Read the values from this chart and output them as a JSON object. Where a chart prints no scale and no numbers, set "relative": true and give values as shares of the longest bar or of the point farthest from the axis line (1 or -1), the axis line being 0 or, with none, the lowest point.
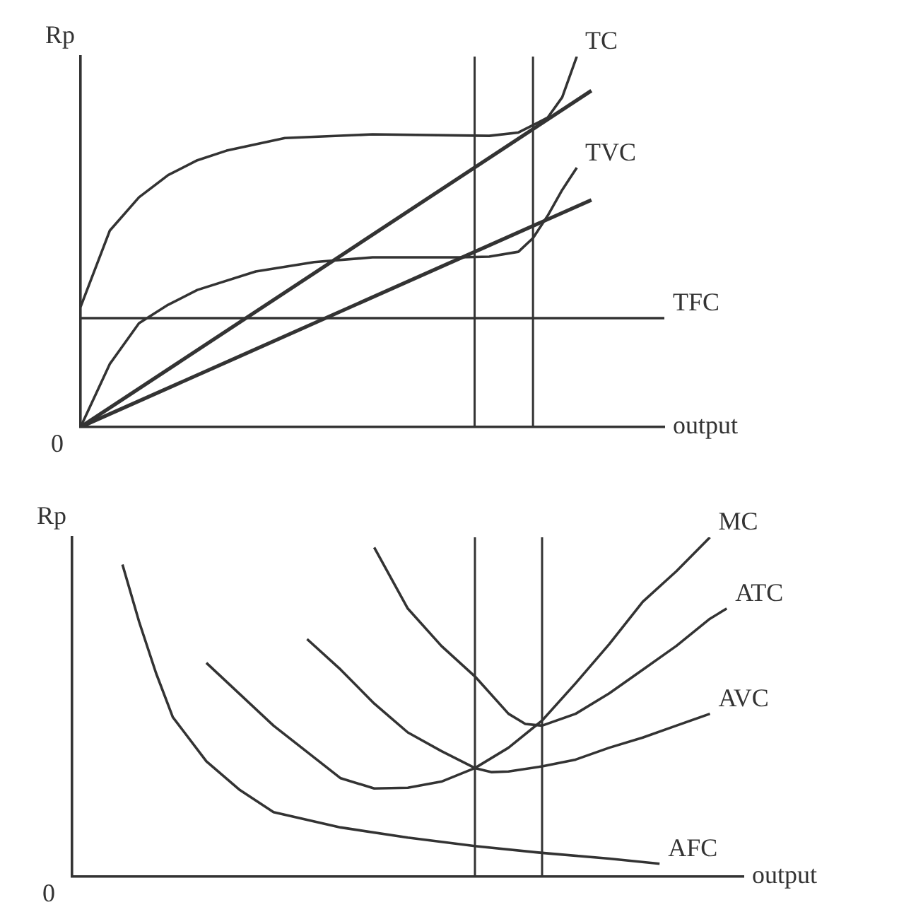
{
  "chart_data": [
    {
      "type": "line",
      "relative": true,
      "ylabel": "Rp",
      "xlabel": "output",
      "annotations": [
        "0"
      ],
      "tick_labels": false,
      "categories": [
        null,
        null,
        null,
        null,
        null,
        null,
        null,
        null,
        null,
        null,
        null,
        null,
        null,
        null,
        null,
        null,
        null,
        null,
        null,
        null,
        null,
        null,
        null,
        null,
        null,
        null,
        null,
        null,
        null,
        null,
        null,
        null,
        null,
        null,
        null,
        null,
        null,
        null,
        null,
        null,
        null
      ],
      "series": [
        {
          "name": "TC",
          "color": "#333333",
          "values": [
            0.324,
            null,
            0.53,
            null,
            0.62,
            null,
            0.68,
            null,
            0.72,
            null,
            0.746,
            null,
            null,
            null,
            0.78,
            null,
            null,
            null,
            null,
            null,
            0.79,
            null,
            null,
            null,
            null,
            null,
            null,
            null,
            0.786,
            null,
            0.795,
            null,
            0.835,
            0.89,
            1,
            null,
            null,
            null,
            null,
            null,
            null
          ]
        },
        {
          "name": "TVC",
          "color": "#333333",
          "values": [
            0,
            null,
            0.17,
            null,
            0.28,
            null,
            0.33,
            null,
            0.37,
            null,
            null,
            null,
            0.42,
            null,
            null,
            null,
            0.445,
            null,
            null,
            null,
            0.458,
            null,
            null,
            null,
            null,
            null,
            0.458,
            null,
            0.46,
            null,
            0.473,
            0.51,
            0.57,
            0.64,
            0.7,
            null,
            null,
            null,
            null,
            null,
            null
          ]
        },
        {
          "name": "TFC",
          "color": "#333333",
          "values": [
            0.294,
            null,
            null,
            null,
            null,
            null,
            null,
            null,
            null,
            null,
            null,
            null,
            null,
            null,
            null,
            null,
            null,
            null,
            null,
            null,
            null,
            null,
            null,
            null,
            null,
            null,
            null,
            null,
            null,
            null,
            null,
            null,
            null,
            null,
            null,
            null,
            null,
            null,
            null,
            null,
            0.294
          ]
        },
        {
          "color": "#333333",
          "values": [
            0,
            null,
            null,
            null,
            null,
            null,
            null,
            null,
            null,
            null,
            null,
            null,
            null,
            null,
            null,
            null,
            null,
            null,
            null,
            null,
            null,
            null,
            null,
            null,
            null,
            null,
            null,
            null,
            null,
            null,
            null,
            null,
            null,
            null,
            null,
            0.908,
            null,
            null,
            null,
            null,
            null
          ]
        },
        {
          "color": "#333333",
          "values": [
            0,
            null,
            null,
            null,
            null,
            null,
            null,
            null,
            null,
            null,
            null,
            null,
            null,
            null,
            null,
            null,
            null,
            null,
            null,
            null,
            null,
            null,
            null,
            null,
            null,
            null,
            null,
            null,
            null,
            null,
            null,
            null,
            null,
            null,
            null,
            0.613,
            null,
            null,
            null,
            null,
            null
          ]
        }
      ]
    },
    {
      "type": "line",
      "relative": true,
      "ylabel": "Rp",
      "xlabel": "output",
      "annotations": [
        "0"
      ],
      "tick_labels": false,
      "categories": [
        null,
        null,
        null,
        null,
        null,
        null,
        null,
        null,
        null,
        null,
        null,
        null,
        null,
        null,
        null,
        null,
        null,
        null,
        null,
        null,
        null,
        null,
        null,
        null,
        null,
        null,
        null,
        null,
        null,
        null,
        null,
        null,
        null,
        null,
        null,
        null,
        null,
        null,
        null,
        null,
        null
      ],
      "series": [
        {
          "name": "MC",
          "color": "#333333",
          "values": [
            null,
            null,
            null,
            null,
            null,
            null,
            null,
            null,
            0.63,
            null,
            null,
            null,
            0.445,
            null,
            null,
            null,
            0.29,
            null,
            0.26,
            null,
            0.262,
            null,
            0.28,
            null,
            0.32,
            null,
            0.38,
            null,
            0.46,
            null,
            0.57,
            null,
            0.685,
            null,
            0.81,
            null,
            0.9,
            null,
            1,
            null,
            null
          ]
        },
        {
          "name": "ATC",
          "color": "#333333",
          "values": [
            null,
            null,
            null,
            null,
            null,
            null,
            null,
            null,
            null,
            null,
            null,
            null,
            null,
            null,
            null,
            null,
            null,
            null,
            0.97,
            null,
            0.79,
            null,
            0.68,
            null,
            0.59,
            null,
            0.48,
            0.45,
            0.445,
            null,
            0.48,
            null,
            0.54,
            null,
            0.61,
            null,
            0.68,
            null,
            0.76,
            0.79,
            null
          ]
        },
        {
          "name": "AVC",
          "color": "#333333",
          "values": [
            null,
            null,
            null,
            null,
            null,
            null,
            null,
            null,
            null,
            null,
            null,
            null,
            null,
            null,
            0.7,
            null,
            0.61,
            null,
            0.51,
            null,
            0.425,
            null,
            0.37,
            null,
            0.32,
            0.308,
            0.31,
            null,
            0.325,
            null,
            0.345,
            null,
            0.38,
            null,
            0.41,
            null,
            0.445,
            null,
            0.48,
            null,
            null
          ]
        },
        {
          "name": "AFC",
          "color": "#333333",
          "values": [
            null,
            null,
            null,
            0.92,
            0.75,
            0.6,
            0.47,
            null,
            0.34,
            null,
            0.255,
            null,
            0.19,
            null,
            null,
            null,
            0.145,
            null,
            null,
            null,
            0.115,
            null,
            null,
            null,
            0.09,
            null,
            null,
            null,
            0.07,
            null,
            null,
            null,
            0.053,
            null,
            null,
            0.038,
            null,
            null,
            null,
            null,
            null
          ]
        }
      ]
    }
  ]
}
